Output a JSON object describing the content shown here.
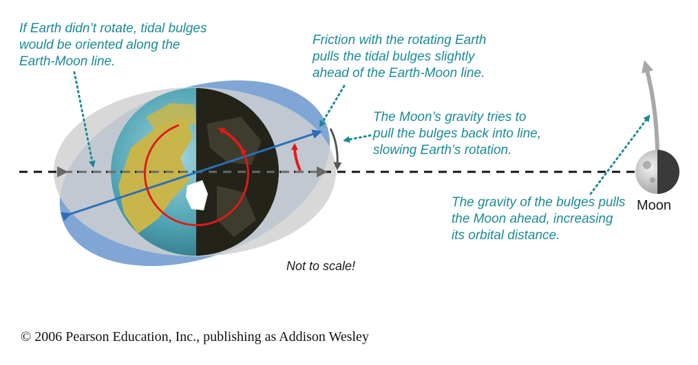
{
  "annotations": {
    "no_rotation": "If Earth didn’t rotate, tidal bulges\nwould be oriented along the\nEarth-Moon line.",
    "friction": "Friction with the rotating Earth\npulls the tidal bulges slightly\nahead of the Earth-Moon line.",
    "moon_gravity": "The Moon’s gravity tries to\npull the bulges back into line,\nslowing Earth’s rotation.",
    "bulge_gravity": "The gravity of the bulges pulls\nthe Moon ahead, increasing\nits orbital distance."
  },
  "labels": {
    "moon": "Moon",
    "scale": "Not to scale!"
  },
  "footer": {
    "copyright": "© 2006 Pearson Education, Inc., publishing as Addison Wesley"
  },
  "colors": {
    "annotation_text": "#1a8a95",
    "rotated_bulge": "#7fa6d4",
    "aligned_bulge": "#cfd0d1",
    "ocean": "#4fa3b3",
    "land": "#c9b64a",
    "night_side": "#23231a",
    "rotation_arrow": "#e01a1a",
    "bulge_axis": "#2a6fb8",
    "orbit_arrow": "#a8a8a8",
    "earth_moon_line": "#111111"
  }
}
